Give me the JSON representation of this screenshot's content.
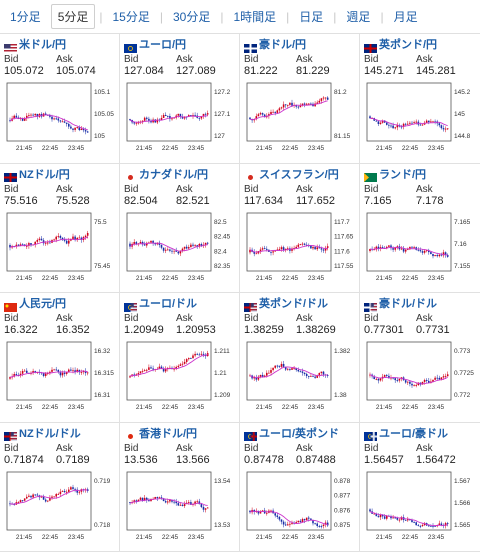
{
  "tabs": [
    {
      "label": "1分足"
    },
    {
      "label": "5分足"
    },
    {
      "label": "15分足"
    },
    {
      "label": "30分足"
    },
    {
      "label": "1時間足"
    },
    {
      "label": "日足"
    },
    {
      "label": "週足"
    },
    {
      "label": "月足"
    }
  ],
  "active_tab": "5分足",
  "labels": {
    "bid": "Bid",
    "ask": "Ask"
  },
  "colors": {
    "link": "#1f5fa8",
    "up": "#d0021b",
    "down": "#1a2fa8",
    "ma": "#cc33cc"
  },
  "pairs": [
    {
      "name": "米ドル/円",
      "flag": "flag-us",
      "bid": "105.072",
      "ask": "105.074",
      "yticks": [
        "105.1",
        "105.05",
        "105"
      ],
      "xticks": [
        "21:45",
        "22:45",
        "23:45"
      ]
    },
    {
      "name": "ユーロ/円",
      "flag": "flag-eu",
      "bid": "127.084",
      "ask": "127.089",
      "yticks": [
        "127.2",
        "127.1",
        "127"
      ],
      "xticks": [
        "21:45",
        "22:45",
        "23:45"
      ]
    },
    {
      "name": "豪ドル/円",
      "flag": "flag-au",
      "bid": "81.222",
      "ask": "81.229",
      "yticks": [
        "81.2",
        "81.15"
      ],
      "xticks": [
        "21:45",
        "22:45",
        "23:45"
      ]
    },
    {
      "name": "英ポンド/円",
      "flag": "flag-uk",
      "bid": "145.271",
      "ask": "145.281",
      "yticks": [
        "145.2",
        "145",
        "144.8"
      ],
      "xticks": [
        "21:45",
        "22:45",
        "23:45"
      ]
    },
    {
      "name": "NZドル/円",
      "flag": "flag-nz",
      "bid": "75.516",
      "ask": "75.528",
      "yticks": [
        "75.5",
        "75.45"
      ],
      "xticks": [
        "21:45",
        "22:45",
        "23:45"
      ]
    },
    {
      "name": "カナダドル/円",
      "flag": "flag-ca",
      "bid": "82.504",
      "ask": "82.521",
      "yticks": [
        "82.5",
        "82.45",
        "82.4",
        "82.35"
      ],
      "xticks": [
        "21:45",
        "22:45",
        "23:45"
      ]
    },
    {
      "name": "スイスフラン/円",
      "flag": "flag-ch",
      "bid": "117.634",
      "ask": "117.652",
      "yticks": [
        "117.7",
        "117.65",
        "117.6",
        "117.55"
      ],
      "xticks": [
        "21:45",
        "22:45",
        "23:45"
      ]
    },
    {
      "name": "ランド/円",
      "flag": "flag-za",
      "bid": "7.165",
      "ask": "7.178",
      "yticks": [
        "7.165",
        "7.16",
        "7.155"
      ],
      "xticks": [
        "21:45",
        "22:45",
        "23:45"
      ]
    },
    {
      "name": "人民元/円",
      "flag": "flag-cn",
      "bid": "16.322",
      "ask": "16.352",
      "yticks": [
        "16.32",
        "16.315",
        "16.31"
      ],
      "xticks": [
        "21:45",
        "22:45",
        "23:45"
      ]
    },
    {
      "name": "ユーロ/ドル",
      "flag": "flag-eu-us",
      "bid": "1.20949",
      "ask": "1.20953",
      "yticks": [
        "1.211",
        "1.21",
        "1.209"
      ],
      "xticks": [
        "21:45",
        "22:45",
        "23:45"
      ]
    },
    {
      "name": "英ポンド/ドル",
      "flag": "flag-uk-us",
      "bid": "1.38259",
      "ask": "1.38269",
      "yticks": [
        "1.382",
        "1.38"
      ],
      "xticks": [
        "21:45",
        "22:45",
        "23:45"
      ]
    },
    {
      "name": "豪ドル/ドル",
      "flag": "flag-au-us",
      "bid": "0.77301",
      "ask": "0.7731",
      "yticks": [
        "0.773",
        "0.7725",
        "0.772"
      ],
      "xticks": [
        "21:45",
        "22:45",
        "23:45"
      ]
    },
    {
      "name": "NZドル/ドル",
      "flag": "flag-nz-us",
      "bid": "0.71874",
      "ask": "0.7189",
      "yticks": [
        "0.719",
        "0.718"
      ],
      "xticks": [
        "21:45",
        "22:45",
        "23:45"
      ]
    },
    {
      "name": "香港ドル/円",
      "flag": "flag-hk",
      "bid": "13.536",
      "ask": "13.566",
      "yticks": [
        "13.54",
        "13.53"
      ],
      "xticks": [
        "21:45",
        "22:45",
        "23:45"
      ]
    },
    {
      "name": "ユーロ/英ポンド",
      "flag": "flag-eu-uk",
      "bid": "0.87478",
      "ask": "0.87488",
      "yticks": [
        "0.878",
        "0.877",
        "0.876",
        "0.875"
      ],
      "xticks": [
        "21:45",
        "22:45",
        "23:45"
      ]
    },
    {
      "name": "ユーロ/豪ドル",
      "flag": "flag-eu-au",
      "bid": "1.56457",
      "ask": "1.56472",
      "yticks": [
        "1.567",
        "1.566",
        "1.565"
      ],
      "xticks": [
        "21:45",
        "22:45",
        "23:45"
      ]
    }
  ]
}
